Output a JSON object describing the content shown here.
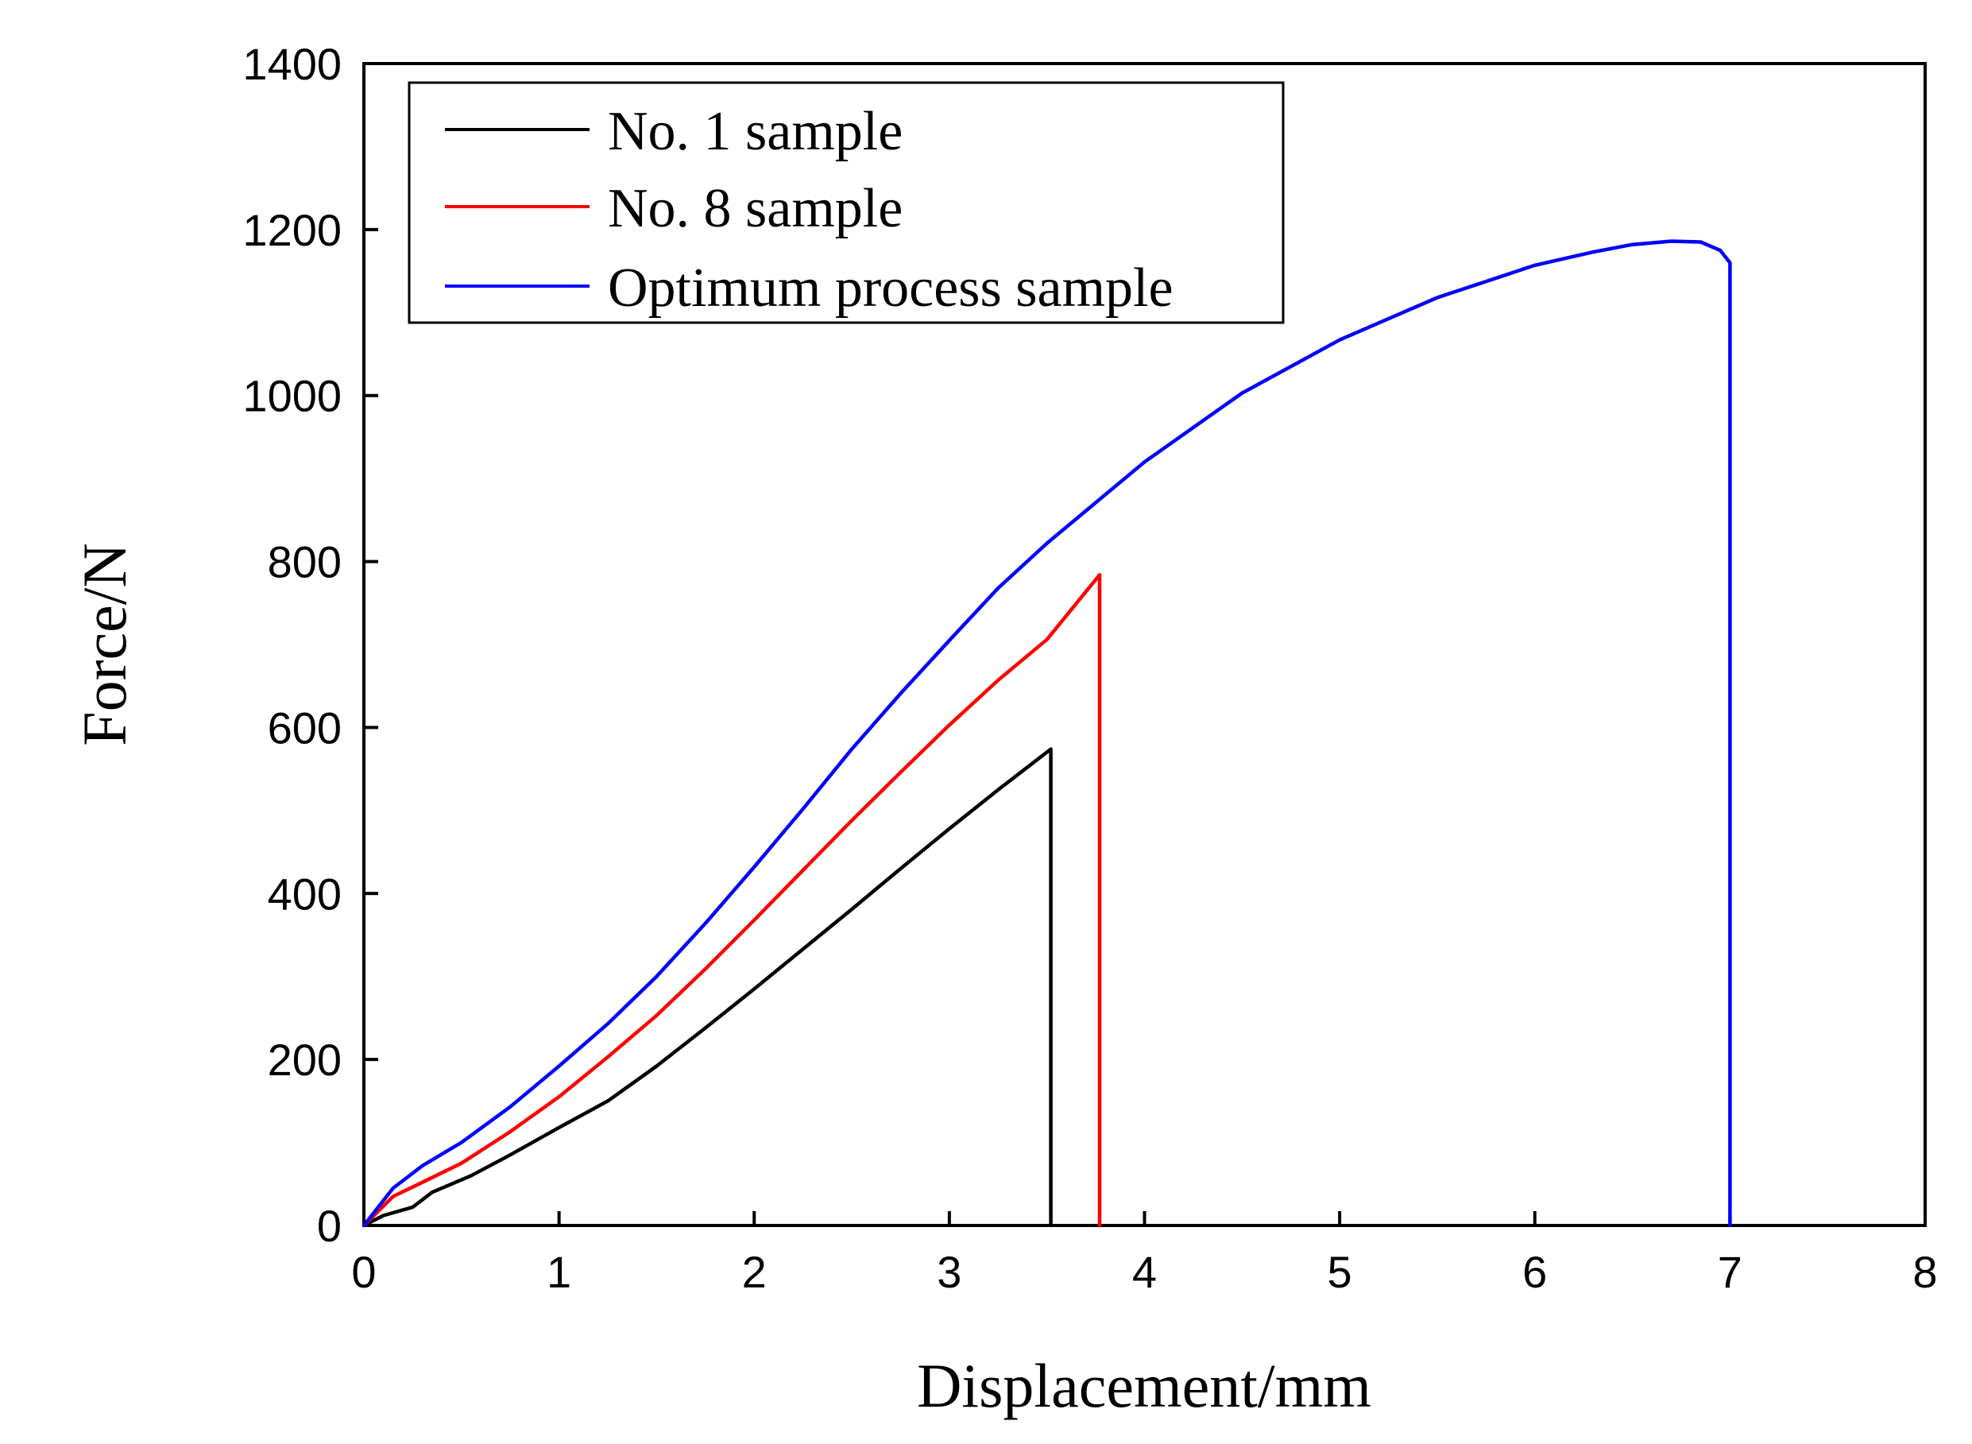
{
  "chart_data": {
    "type": "line",
    "title": "",
    "xlabel": "Displacement/mm",
    "ylabel": "Force/N",
    "xlim": [
      0,
      8
    ],
    "ylim": [
      0,
      1400
    ],
    "xticks": [
      0,
      1,
      2,
      3,
      4,
      5,
      6,
      7,
      8
    ],
    "yticks": [
      0,
      200,
      400,
      600,
      800,
      1000,
      1200,
      1400
    ],
    "grid": false,
    "legend_position": "top-left",
    "series": [
      {
        "name": "No. 1 sample",
        "color": "#000000",
        "x": [
          0,
          0.1,
          0.25,
          0.35,
          0.55,
          0.75,
          1.0,
          1.25,
          1.5,
          1.75,
          2.0,
          2.25,
          2.5,
          2.75,
          3.0,
          3.25,
          3.52,
          3.52
        ],
        "y": [
          0,
          12,
          22,
          40,
          60,
          85,
          118,
          150,
          192,
          238,
          285,
          333,
          381,
          430,
          478,
          525,
          574,
          0
        ]
      },
      {
        "name": "No. 8 sample",
        "color": "#ff0000",
        "x": [
          0,
          0.15,
          0.3,
          0.5,
          0.75,
          1.0,
          1.25,
          1.5,
          1.75,
          2.0,
          2.25,
          2.5,
          2.75,
          3.0,
          3.25,
          3.5,
          3.77,
          3.77
        ],
        "y": [
          0,
          35,
          52,
          75,
          113,
          155,
          203,
          253,
          309,
          368,
          428,
          488,
          546,
          603,
          657,
          706,
          784,
          0
        ]
      },
      {
        "name": "Optimum process sample",
        "color": "#0000ff",
        "x": [
          0,
          0.15,
          0.3,
          0.5,
          0.75,
          1.0,
          1.25,
          1.5,
          1.75,
          2.0,
          2.25,
          2.5,
          2.75,
          3.0,
          3.25,
          3.5,
          4.0,
          4.5,
          5.0,
          5.5,
          6.0,
          6.3,
          6.5,
          6.7,
          6.85,
          6.95,
          7.0,
          7.0
        ],
        "y": [
          0,
          45,
          72,
          100,
          143,
          192,
          243,
          300,
          364,
          432,
          502,
          574,
          641,
          705,
          768,
          822,
          920,
          1003,
          1067,
          1118,
          1157,
          1173,
          1182,
          1186,
          1185,
          1175,
          1160,
          0
        ]
      }
    ]
  }
}
